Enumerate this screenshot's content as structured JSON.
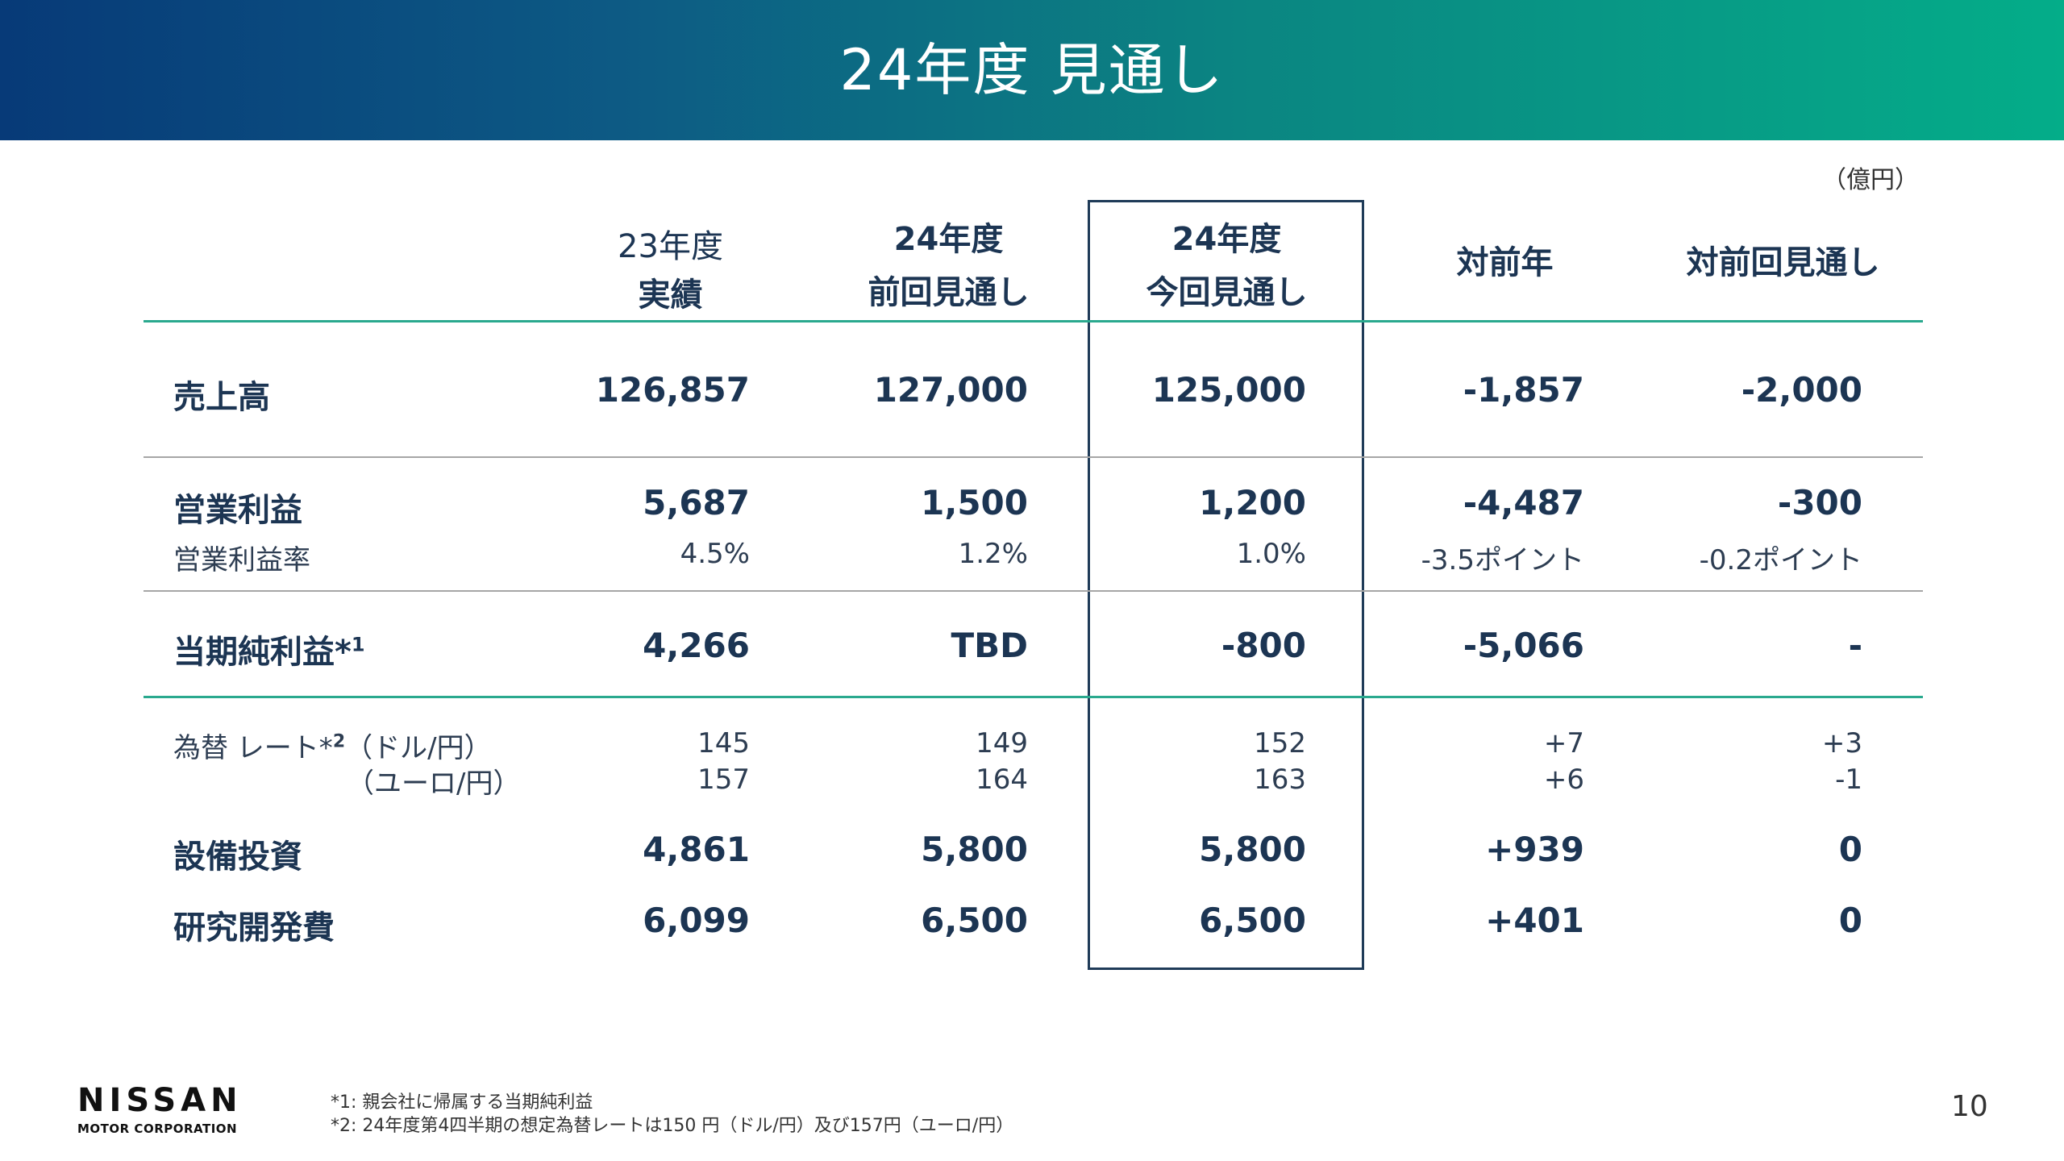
{
  "title": "24年度 見通し",
  "unit": "（億円）",
  "columns": [
    {
      "line1": "23年度",
      "line2": "実績"
    },
    {
      "line1": "24年度",
      "line2": "前回見通し"
    },
    {
      "line1": "24年度",
      "line2": "今回見通し"
    },
    {
      "line1": "対前年",
      "line2": ""
    },
    {
      "line1": "対前回見通し",
      "line2": ""
    }
  ],
  "rows": {
    "sales": {
      "label": "売上高",
      "values": [
        "126,857",
        "127,000",
        "125,000",
        "-1,857",
        "-2,000"
      ]
    },
    "op_profit": {
      "label": "営業利益",
      "values": [
        "5,687",
        "1,500",
        "1,200",
        "-4,487",
        "-300"
      ]
    },
    "op_margin": {
      "label": "営業利益率",
      "values": [
        "4.5%",
        "1.2%",
        "1.0%",
        "-3.5ポイント",
        "-0.2ポイント"
      ]
    },
    "net_income": {
      "label": "当期純利益*",
      "note": "1",
      "values": [
        "4,266",
        "TBD",
        "-800",
        "-5,066",
        "-"
      ]
    },
    "fx_usd": {
      "label": "為替 レート*",
      "note": "2",
      "pair": "（ドル/円）",
      "values": [
        "145",
        "149",
        "152",
        "+7",
        "+3"
      ]
    },
    "fx_eur": {
      "pair": "（ユーロ/円）",
      "values": [
        "157",
        "164",
        "163",
        "+6",
        "-1"
      ]
    },
    "capex": {
      "label": "設備投資",
      "values": [
        "4,861",
        "5,800",
        "5,800",
        "+939",
        "0"
      ]
    },
    "rnd": {
      "label": "研究開発費",
      "values": [
        "6,099",
        "6,500",
        "6,500",
        "+401",
        "0"
      ]
    }
  },
  "footnotes": [
    "*1:  親会社に帰属する当期純利益",
    "*2:  24年度第4四半期の想定為替レートは150 円（ドル/円）及び157円（ユーロ/円）"
  ],
  "logo": {
    "main": "NISSAN",
    "sub": "MOTOR CORPORATION"
  },
  "page_number": "10",
  "colors": {
    "header_start": "#073a78",
    "header_end": "#04ad89",
    "accent_line": "#2aa98e",
    "text": "#1c3553"
  }
}
